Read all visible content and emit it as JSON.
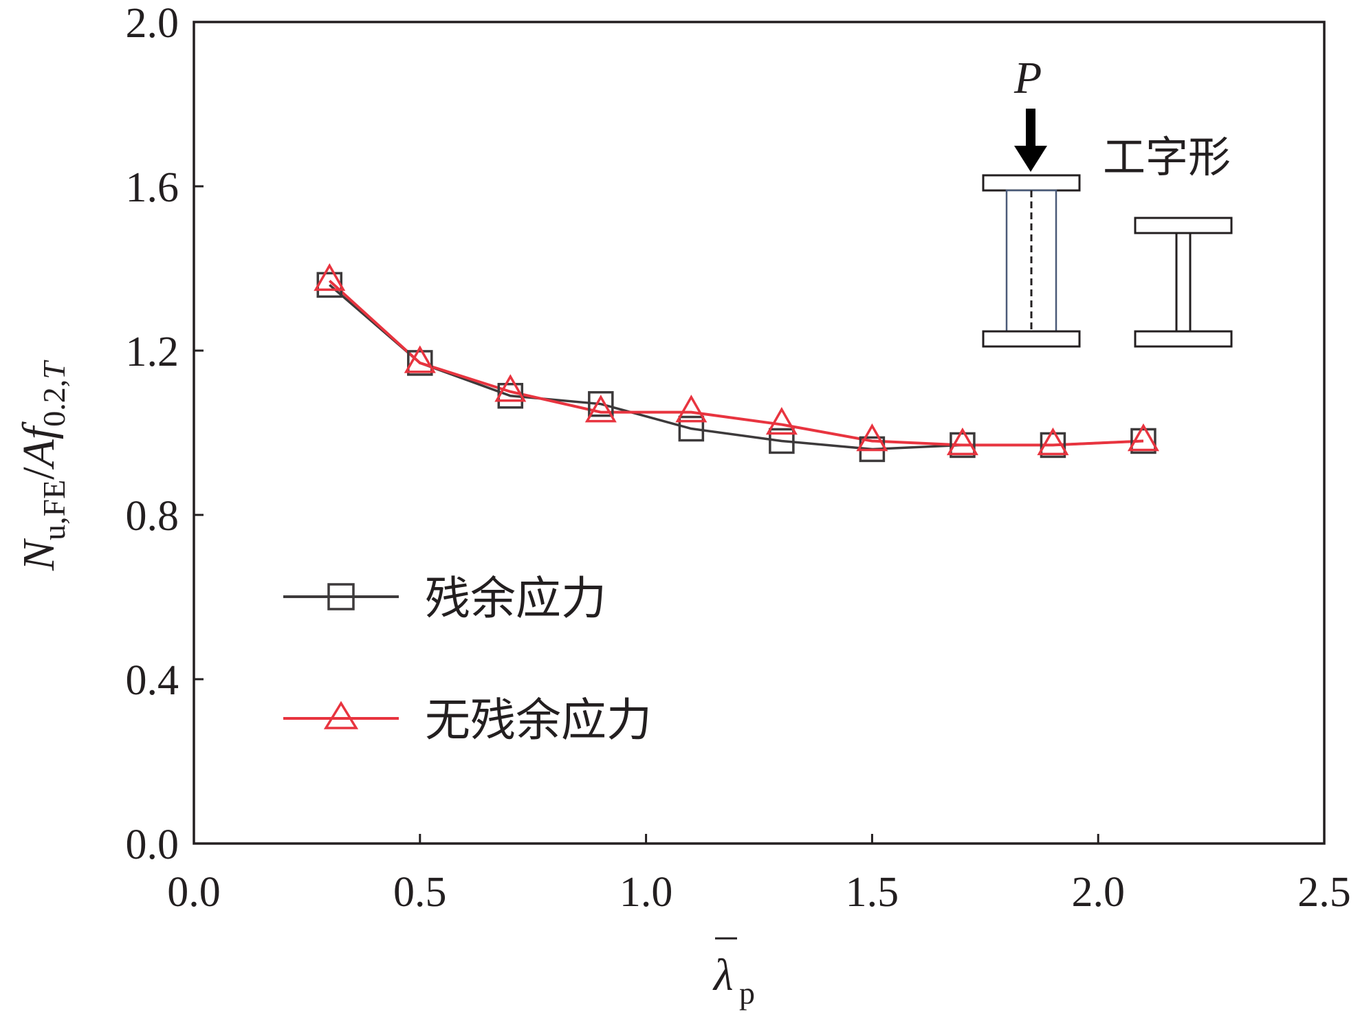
{
  "chart_data": {
    "type": "line",
    "x_tick_labels": [
      "0.0",
      "0.5",
      "1.0",
      "1.5",
      "2.0",
      "2.5"
    ],
    "y_tick_labels": [
      "0.0",
      "0.4",
      "0.8",
      "1.2",
      "1.6",
      "2.0"
    ],
    "xlim": [
      0,
      2.5
    ],
    "ylim": [
      0,
      2.0
    ],
    "xlabel": {
      "main": "λ",
      "sub": "p"
    },
    "ylabel": {
      "n": "N",
      "n_sub": "u,FE",
      "slash": "/",
      "a": "Af",
      "f_sub": "0.2,",
      "t": "T"
    },
    "grid": false,
    "legend_position": "center-left",
    "series": [
      {
        "name": "残余应力",
        "marker": "square",
        "color": "#3d3a3b",
        "x": [
          0.3,
          0.5,
          0.7,
          0.9,
          1.1,
          1.3,
          1.5,
          1.7,
          1.9,
          2.1
        ],
        "y": [
          1.36,
          1.17,
          1.09,
          1.07,
          1.01,
          0.98,
          0.96,
          0.97,
          0.97,
          0.98
        ]
      },
      {
        "name": "无残余应力",
        "marker": "triangle",
        "color": "#e8343f",
        "x": [
          0.3,
          0.5,
          0.7,
          0.9,
          1.1,
          1.3,
          1.5,
          1.7,
          1.9,
          2.1
        ],
        "y": [
          1.37,
          1.17,
          1.1,
          1.05,
          1.05,
          1.02,
          0.98,
          0.97,
          0.97,
          0.98
        ]
      }
    ],
    "inset": {
      "load_label": "P",
      "section_label": "工字形"
    }
  }
}
